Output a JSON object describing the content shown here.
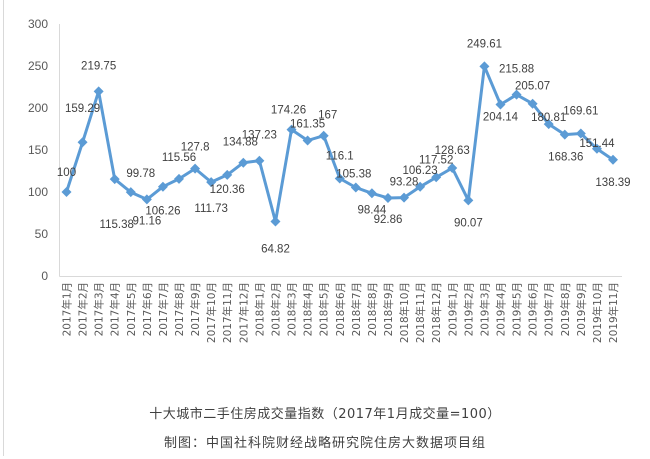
{
  "chart_data": {
    "type": "line",
    "title": "十大城市二手住房成交量指数（2017年1月成交量=100）",
    "source": "制图：中国社科院财经战略研究院住房大数据项目组",
    "xlabel": "",
    "ylabel": "",
    "ylim": [
      0,
      300
    ],
    "yticks": [
      0,
      50,
      100,
      150,
      200,
      250,
      300
    ],
    "grid": false,
    "legend": null,
    "marker": "diamond",
    "line_color": "#5b9bd5",
    "categories": [
      "2017年1月",
      "2017年2月",
      "2017年3月",
      "2017年4月",
      "2017年5月",
      "2017年6月",
      "2017年7月",
      "2017年8月",
      "2017年9月",
      "2017年10月",
      "2017年11月",
      "2017年12月",
      "2018年1月",
      "2018年2月",
      "2018年3月",
      "2018年4月",
      "2018年5月",
      "2018年6月",
      "2018年7月",
      "2018年8月",
      "2018年9月",
      "2018年10月",
      "2018年11月",
      "2018年12月",
      "2019年1月",
      "2019年2月",
      "2019年3月",
      "2019年4月",
      "2019年5月",
      "2019年6月",
      "2019年7月",
      "2019年8月",
      "2019年9月",
      "2019年10月",
      "2019年11月"
    ],
    "series": [
      {
        "name": "十大城市二手住房成交量指数",
        "values": [
          100,
          159.29,
          219.75,
          115.38,
          99.78,
          91.16,
          106.26,
          115.56,
          127.8,
          111.73,
          120.36,
          134.88,
          137.23,
          64.82,
          174.26,
          161.35,
          167,
          116.1,
          105.38,
          98.44,
          92.86,
          93.28,
          106.23,
          117.52,
          128.63,
          90.07,
          249.61,
          204.14,
          215.88,
          205.07,
          180.81,
          168.36,
          169.61,
          151.44,
          138.39
        ],
        "labels": [
          "100",
          "159.29",
          "219.75",
          "115.38",
          "99.78",
          "91.16",
          "106.26",
          "115.56",
          "127.8",
          "111.73",
          "120.36",
          "134.88",
          "137.23",
          "64.82",
          "174.26",
          "161.35",
          "167",
          "116.1",
          "105.38",
          "98.44",
          "92.86",
          "93.28",
          "106.23",
          "117.52",
          "128.63",
          "90.07",
          "249.61",
          "204.14",
          "215.88",
          "205.07",
          "180.81",
          "168.36",
          "169.61",
          "151.44",
          "138.39"
        ]
      }
    ]
  },
  "captions": {
    "title": "十大城市二手住房成交量指数（2017年1月成交量=100）",
    "source": "制图：中国社科院财经战略研究院住房大数据项目组"
  }
}
